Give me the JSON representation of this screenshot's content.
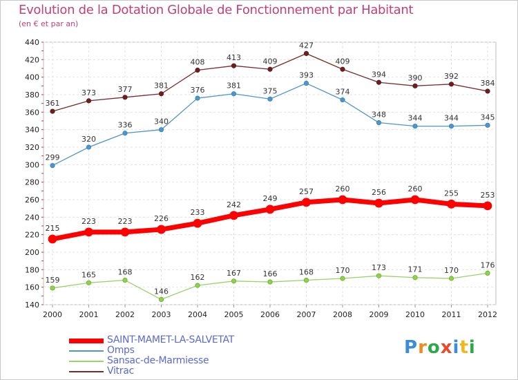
{
  "title": "Evolution de la Dotation Globale de Fonctionnement par Habitant",
  "subtitle": "(en € et par an)",
  "brand": {
    "letters": [
      "P",
      "r",
      "o",
      "x",
      "i",
      "t",
      "i"
    ],
    "colors": [
      "#3a8ed8",
      "#f08a1c",
      "#2ea84a",
      "#e84a2a",
      "#3a8ed8",
      "#f0b81c",
      "#2ea84a"
    ]
  },
  "chart_data": {
    "type": "line",
    "title": "Evolution de la Dotation Globale de Fonctionnement par Habitant",
    "subtitle": "(en € et par an)",
    "xlabel": "",
    "ylabel": "",
    "x": [
      "2000",
      "2001",
      "2002",
      "2003",
      "2004",
      "2005",
      "2006",
      "2007",
      "2008",
      "2009",
      "2010",
      "2011",
      "2012"
    ],
    "ylim": [
      140,
      440
    ],
    "yticks": [
      140,
      160,
      180,
      200,
      220,
      240,
      260,
      280,
      300,
      320,
      340,
      360,
      380,
      400,
      420,
      440
    ],
    "grid": true,
    "legend_position": "bottom-left",
    "series": [
      {
        "name": "SAINT-MAMET-LA-SALVETAT",
        "color": "#ff0000",
        "values": [
          215,
          223,
          223,
          226,
          233,
          242,
          249,
          257,
          260,
          256,
          260,
          255,
          253
        ]
      },
      {
        "name": "Omps",
        "color": "#4e95c8",
        "values": [
          299,
          320,
          336,
          340,
          376,
          381,
          375,
          393,
          374,
          348,
          344,
          344,
          345
        ]
      },
      {
        "name": "Sansac-de-Marmiesse",
        "color": "#99d26a",
        "values": [
          159,
          165,
          168,
          146,
          162,
          167,
          166,
          168,
          170,
          173,
          171,
          170,
          176
        ]
      },
      {
        "name": "Vitrac",
        "color": "#7a2a2a",
        "values": [
          361,
          373,
          377,
          381,
          408,
          413,
          409,
          427,
          409,
          394,
          390,
          392,
          384
        ]
      }
    ]
  }
}
